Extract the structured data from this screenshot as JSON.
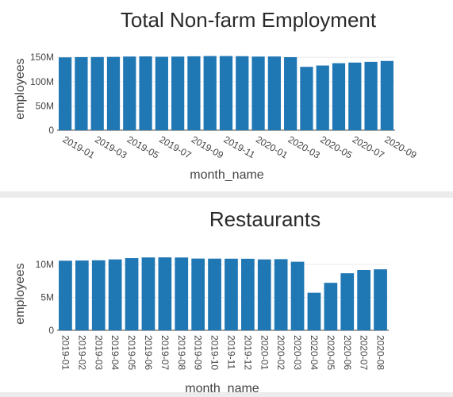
{
  "colors": {
    "bar": "#1f77b4",
    "grid": "#ebebeb",
    "separator": "#ececec"
  },
  "chart_data": [
    {
      "type": "bar",
      "title": "Total Non-farm Employment",
      "xlabel": "month_name",
      "ylabel": "employees",
      "ylim": [
        0,
        160000000
      ],
      "yticks": [
        0,
        50000000,
        100000000,
        150000000
      ],
      "ytick_labels": [
        "0",
        "50M",
        "100M",
        "150M"
      ],
      "tick_angle": 30,
      "categories": [
        "2019-01",
        "2019-02",
        "2019-03",
        "2019-04",
        "2019-05",
        "2019-06",
        "2019-07",
        "2019-08",
        "2019-09",
        "2019-10",
        "2019-11",
        "2019-12",
        "2020-01",
        "2020-02",
        "2020-03",
        "2020-04",
        "2020-05",
        "2020-06",
        "2020-07",
        "2020-08",
        "2020-09"
      ],
      "labeled_categories": [
        "2019-01",
        "2019-03",
        "2019-05",
        "2019-07",
        "2019-09",
        "2019-11",
        "2020-01",
        "2020-03",
        "2020-05",
        "2020-07",
        "2020-09"
      ],
      "values": [
        149800000,
        150300000,
        150500000,
        150800000,
        151500000,
        151800000,
        151000000,
        151400000,
        152000000,
        152500000,
        152500000,
        152200000,
        151400000,
        151600000,
        150200000,
        130300000,
        133000000,
        137800000,
        139100000,
        140600000,
        142400000
      ]
    },
    {
      "type": "bar",
      "title": "Restaurants",
      "xlabel": "month_name",
      "ylabel": "employees",
      "ylim": [
        0,
        11800000
      ],
      "yticks": [
        0,
        5000000,
        10000000
      ],
      "ytick_labels": [
        "0",
        "5M",
        "10M"
      ],
      "tick_angle": 90,
      "categories": [
        "2019-01",
        "2019-02",
        "2019-03",
        "2019-04",
        "2019-05",
        "2019-06",
        "2019-07",
        "2019-08",
        "2019-09",
        "2019-10",
        "2019-11",
        "2019-12",
        "2020-01",
        "2020-02",
        "2020-03",
        "2020-04",
        "2020-05",
        "2020-06",
        "2020-07",
        "2020-08"
      ],
      "labeled_categories": [
        "2019-01",
        "2019-02",
        "2019-03",
        "2019-04",
        "2019-05",
        "2019-06",
        "2019-07",
        "2019-08",
        "2019-09",
        "2019-10",
        "2019-11",
        "2019-12",
        "2020-01",
        "2020-02",
        "2020-03",
        "2020-04",
        "2020-05",
        "2020-06",
        "2020-07",
        "2020-08"
      ],
      "values": [
        10550000,
        10580000,
        10620000,
        10750000,
        10950000,
        11050000,
        11060000,
        11040000,
        10880000,
        10870000,
        10860000,
        10850000,
        10750000,
        10790000,
        10400000,
        5700000,
        7200000,
        8650000,
        9150000,
        9250000
      ]
    }
  ]
}
